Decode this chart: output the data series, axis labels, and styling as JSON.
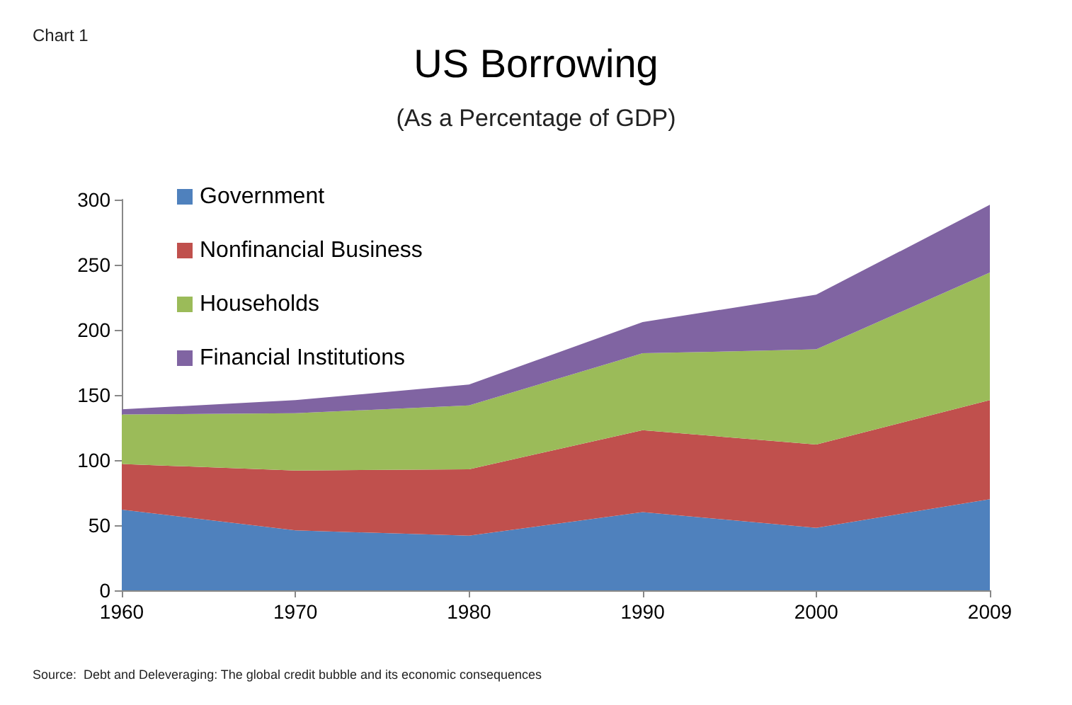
{
  "chart_data": {
    "type": "area",
    "title": "US Borrowing",
    "subtitle": "(As a Percentage of GDP)",
    "annotations": [
      "Chart 1",
      "Source:  Debt and Deleveraging: The global credit bubble and its economic consequences"
    ],
    "categories": [
      "1960",
      "1970",
      "1980",
      "1990",
      "2000",
      "2009"
    ],
    "stacked": true,
    "series": [
      {
        "name": "Government",
        "color": "#4f81bd",
        "values": [
          62,
          46,
          42,
          60,
          48,
          70
        ]
      },
      {
        "name": "Nonfinancial Business",
        "color": "#c0504d",
        "values": [
          35,
          46,
          51,
          63,
          64,
          76
        ]
      },
      {
        "name": "Households",
        "color": "#9bbb59",
        "values": [
          38,
          44,
          49,
          59,
          73,
          98
        ]
      },
      {
        "name": "Financial Institutions",
        "color": "#8064a2",
        "values": [
          4,
          10,
          16,
          24,
          42,
          52
        ]
      }
    ],
    "ylim": [
      0,
      300
    ],
    "yticks": [
      0,
      50,
      100,
      150,
      200,
      250,
      300
    ],
    "grid": false,
    "legend": "top left"
  }
}
